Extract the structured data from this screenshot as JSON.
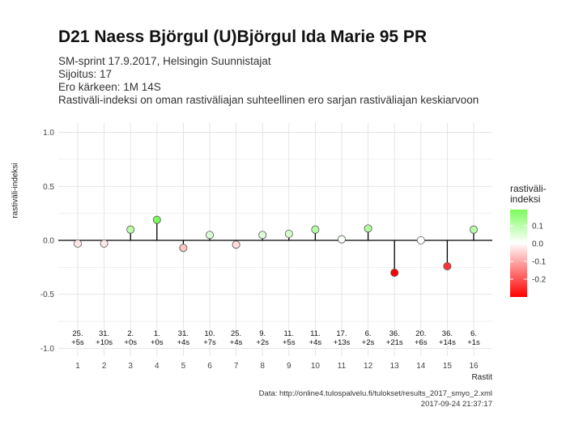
{
  "header": {
    "title": "D21 Naess Björgul (U)Björgul Ida Marie 95 PR",
    "subtitle_lines": [
      "SM-sprint 17.9.2017, Helsingin Suunnistajat",
      "Sijoitus: 17",
      "Ero kärkeen: 1M 14S",
      "Rastiväli-indeksi on oman rastiväliajan suhteellinen ero sarjan rastiväliajan keskiarvoon"
    ]
  },
  "caption": {
    "source": "Data: http://online4.tulospalvelu.fi/tulokset/results_2017_smyo_2.xml",
    "timestamp": "2017-09-24 21:37:17"
  },
  "chart_data": {
    "type": "lollipop",
    "xlabel": "Rastit",
    "ylabel": "rastiväli-indeksi",
    "ylim": [
      -1.0,
      1.0
    ],
    "yticks": [
      1.0,
      0.5,
      0.0,
      -0.5,
      -1.0
    ],
    "ytick_labels": [
      "1.0",
      "0.5",
      "0.0",
      "-0.5",
      "-1.0"
    ],
    "x": [
      1,
      2,
      3,
      4,
      5,
      6,
      7,
      8,
      9,
      10,
      11,
      12,
      13,
      14,
      15,
      16
    ],
    "values": [
      -0.03,
      -0.03,
      0.1,
      0.19,
      -0.07,
      0.05,
      -0.04,
      0.05,
      0.06,
      0.1,
      0.01,
      0.11,
      -0.3,
      0.0,
      -0.24,
      0.1
    ],
    "ranks": [
      "25.",
      "31.",
      "2.",
      "1.",
      "31.",
      "10.",
      "25.",
      "9.",
      "11.",
      "11.",
      "17.",
      "6.",
      "36.",
      "20.",
      "36.",
      "6."
    ],
    "diffs": [
      "+5s",
      "+10s",
      "+0s",
      "+0s",
      "+4s",
      "+7s",
      "+4s",
      "+2s",
      "+5s",
      "+4s",
      "+13s",
      "+2s",
      "+21s",
      "+6s",
      "+14s",
      "+1s"
    ],
    "grid": true,
    "legend": {
      "title_lines": [
        "rastiväli-",
        "indeksi"
      ],
      "ticks": [
        0.1,
        0.0,
        -0.1,
        -0.2
      ],
      "tick_labels": [
        "0.1",
        "0.0",
        "-0.1",
        "-0.2"
      ],
      "range": [
        -0.3,
        0.19
      ],
      "placement": "right"
    },
    "colors": {
      "high": "#7cfc5c",
      "mid": "#ffffff",
      "low": "#ff0000",
      "grid": "#e2e2e2",
      "line": "#000000"
    }
  }
}
